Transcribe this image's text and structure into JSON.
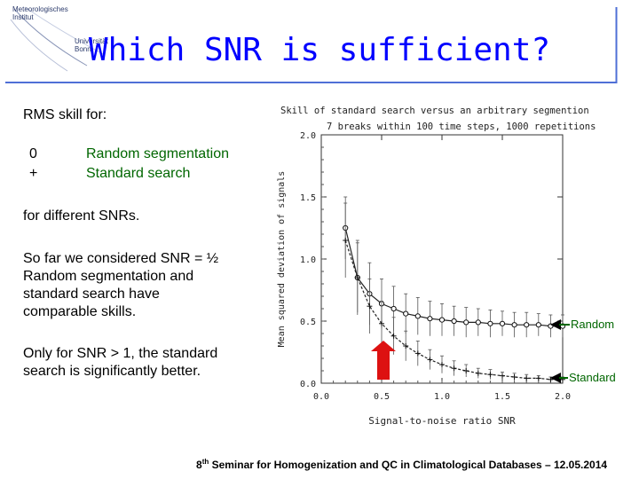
{
  "header": {
    "logo_line1": "Meteorologisches",
    "logo_line2": "Institut",
    "logo_line3": "Universität",
    "logo_line4": "Bonn",
    "title": "Which SNR is sufficient?"
  },
  "body": {
    "rms_label": "RMS skill for:",
    "legend": [
      {
        "symbol": "0",
        "label": "Random segmentation"
      },
      {
        "symbol": "+",
        "label": "Standard search"
      }
    ],
    "snrs_text": "for different SNRs.",
    "paragraph1_lines": [
      "So far we considered SNR = ½",
      "Random segmentation and",
      "standard search have",
      "comparable skills."
    ],
    "paragraph2_lines": [
      "Only for SNR > 1, the standard",
      "search is significantly better."
    ]
  },
  "callouts": {
    "random": "Random",
    "standard": "Standard"
  },
  "chart_data": {
    "type": "scatter",
    "title_line1": "Skill of standard search versus an arbitrary segmention",
    "title_line2": "7 breaks within 100 time steps, 1000 repetitions",
    "xlabel": "Signal-to-noise ratio SNR",
    "ylabel": "Mean squared deviation of signals",
    "xlim": [
      0.0,
      2.0
    ],
    "ylim": [
      0.0,
      2.0
    ],
    "x_ticks": [
      "0.0",
      "0.5",
      "1.0",
      "1.5",
      "2.0"
    ],
    "y_ticks": [
      "0.0",
      "0.5",
      "1.0",
      "1.5",
      "2.0"
    ],
    "series": [
      {
        "name": "Random segmentation",
        "x": [
          0.2,
          0.3,
          0.4,
          0.5,
          0.6,
          0.7,
          0.8,
          0.9,
          1.0,
          1.1,
          1.2,
          1.3,
          1.4,
          1.5,
          1.6,
          1.7,
          1.8,
          1.9,
          2.0
        ],
        "y": [
          1.25,
          0.85,
          0.72,
          0.64,
          0.6,
          0.56,
          0.54,
          0.52,
          0.51,
          0.5,
          0.49,
          0.49,
          0.48,
          0.48,
          0.47,
          0.47,
          0.47,
          0.46,
          0.46
        ],
        "err": [
          0.25,
          0.3,
          0.25,
          0.2,
          0.18,
          0.16,
          0.15,
          0.14,
          0.13,
          0.12,
          0.12,
          0.11,
          0.11,
          0.1,
          0.1,
          0.1,
          0.09,
          0.09,
          0.09
        ]
      },
      {
        "name": "Standard search",
        "x": [
          0.2,
          0.3,
          0.4,
          0.5,
          0.6,
          0.7,
          0.8,
          0.9,
          1.0,
          1.1,
          1.2,
          1.3,
          1.4,
          1.5,
          1.6,
          1.7,
          1.8,
          1.9,
          2.0
        ],
        "y": [
          1.15,
          0.85,
          0.62,
          0.48,
          0.38,
          0.3,
          0.24,
          0.19,
          0.15,
          0.12,
          0.1,
          0.08,
          0.07,
          0.06,
          0.05,
          0.04,
          0.04,
          0.03,
          0.03
        ],
        "err": [
          0.3,
          0.28,
          0.22,
          0.18,
          0.15,
          0.12,
          0.1,
          0.08,
          0.07,
          0.06,
          0.05,
          0.04,
          0.04,
          0.03,
          0.03,
          0.03,
          0.02,
          0.02,
          0.02
        ]
      }
    ]
  },
  "footer": {
    "ordinal": "8",
    "sup": "th",
    "text": " Seminar for Homogenization and QC in Climatological Databases – 12.05.2014"
  },
  "colors": {
    "title": "#0000ff",
    "legend_text": "#006600",
    "arrow_red": "#dd1111",
    "accent_line": "#4f6fd6"
  }
}
